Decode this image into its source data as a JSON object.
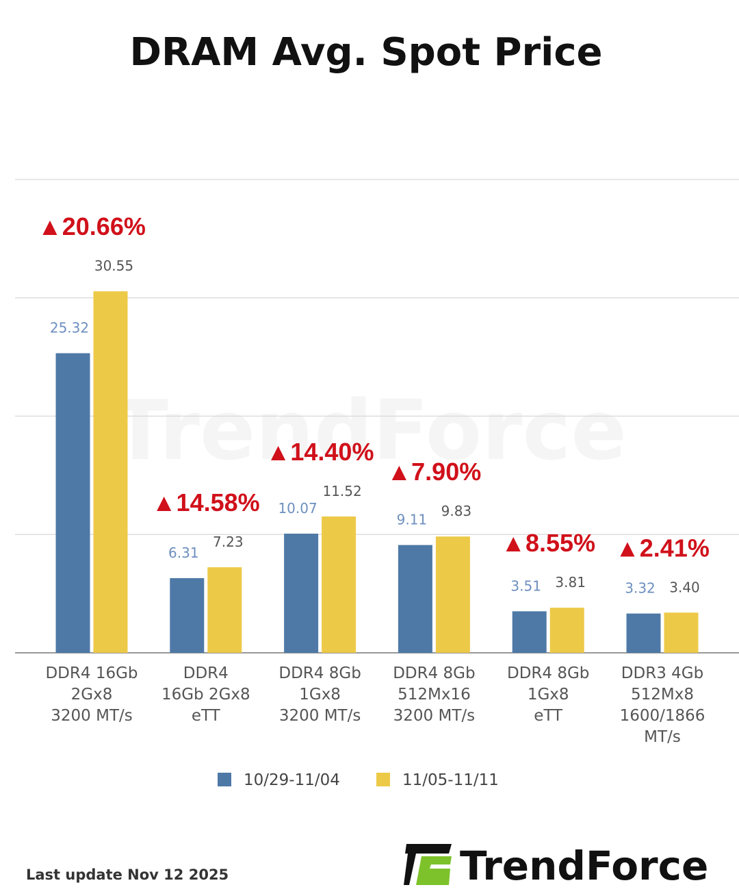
{
  "chart_data": {
    "type": "bar",
    "title": "DRAM Avg. Spot Price",
    "categories": [
      [
        "DDR4 16Gb",
        "2Gx8",
        "3200 MT/s"
      ],
      [
        "DDR4",
        "16Gb 2Gx8",
        "eTT"
      ],
      [
        "DDR4 8Gb",
        "1Gx8",
        "3200 MT/s"
      ],
      [
        "DDR4 8Gb",
        "512Mx16",
        "3200 MT/s"
      ],
      [
        "DDR4 8Gb",
        "1Gx8",
        "eTT"
      ],
      [
        "DDR3 4Gb",
        "512Mx8",
        "1600/1866",
        "MT/s"
      ]
    ],
    "series": [
      {
        "name": "10/29-11/04",
        "color": "#4e79a7",
        "values": [
          25.32,
          6.31,
          10.07,
          9.11,
          3.51,
          3.32
        ],
        "labels": [
          "25.32",
          "6.31",
          "10.07",
          "9.11",
          "3.51",
          "3.32"
        ]
      },
      {
        "name": "11/05-11/11",
        "color": "#edc948",
        "values": [
          30.55,
          7.23,
          11.52,
          9.83,
          3.81,
          3.4
        ],
        "labels": [
          "30.55",
          "7.23",
          "11.52",
          "9.83",
          "3.81",
          "3.40"
        ]
      }
    ],
    "changes": [
      "▲20.66%",
      "▲14.58%",
      "▲14.40%",
      "▲7.90%",
      "▲8.55%",
      "▲2.41%"
    ],
    "change_color": "#d0101a",
    "ylim": [
      0,
      40
    ],
    "gridlines": [
      0,
      10,
      20,
      30,
      40
    ],
    "grid": true,
    "legend_position": "bottom",
    "xlabel": "",
    "ylabel": ""
  },
  "footer": {
    "last_update": "Last update Nov 12  2025",
    "brand": "TrendForce",
    "brand_color": "#7dc22b"
  }
}
